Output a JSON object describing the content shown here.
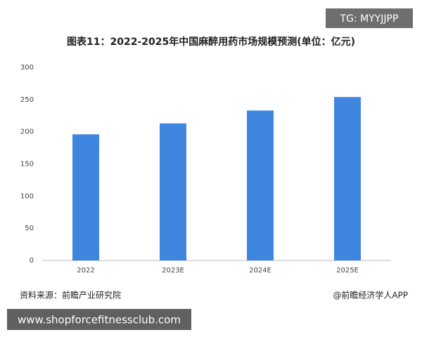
{
  "chart_data": {
    "type": "bar",
    "title": "图表11：2022-2025年中国麻醉用药市场规模预测(单位：亿元)",
    "categories": [
      "2022",
      "2023E",
      "2024E",
      "2025E"
    ],
    "values": [
      196,
      213,
      233,
      254
    ],
    "color": "#3f86e0",
    "ylim": [
      0,
      300
    ],
    "yticks": [
      0,
      50,
      100,
      150,
      200,
      250,
      300
    ],
    "grid": false,
    "source": "资料来源：前瞻产业研究院",
    "credit": "@前瞻经济学人APP"
  },
  "overlays": {
    "tag": "TG: MYYJJPP",
    "url": "www.shopforcefitnessclub.com"
  }
}
